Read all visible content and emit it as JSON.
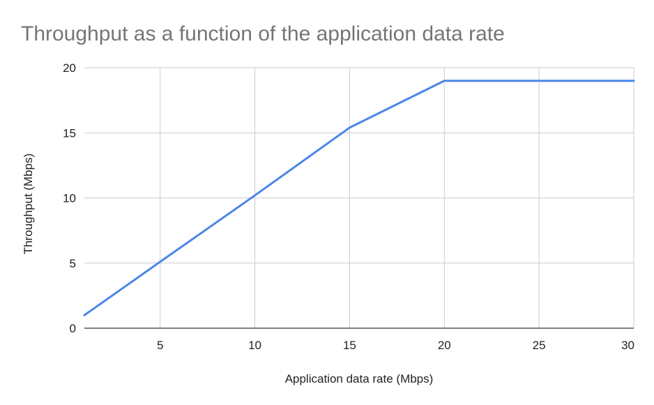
{
  "chart_data": {
    "type": "line",
    "title": "Throughput as a function of the application data rate",
    "xlabel": "Application data rate (Mbps)",
    "ylabel": "Throughput (Mbps)",
    "xlim": [
      1,
      30
    ],
    "ylim": [
      0,
      20
    ],
    "xticks": [
      5,
      10,
      15,
      20,
      25,
      30
    ],
    "yticks": [
      0,
      5,
      10,
      15,
      20
    ],
    "grid": true,
    "legend": "none",
    "series": [
      {
        "color": "#4a86e8",
        "x": [
          1,
          5,
          10,
          15,
          20,
          25,
          30
        ],
        "y": [
          1.0,
          5.1,
          10.2,
          15.4,
          19.0,
          19.0,
          19.0
        ]
      }
    ]
  },
  "colors": {
    "line": "#4a86e8",
    "grid": "#cccccc",
    "baseline": "#333333",
    "title": "#757575",
    "text": "#222222"
  }
}
